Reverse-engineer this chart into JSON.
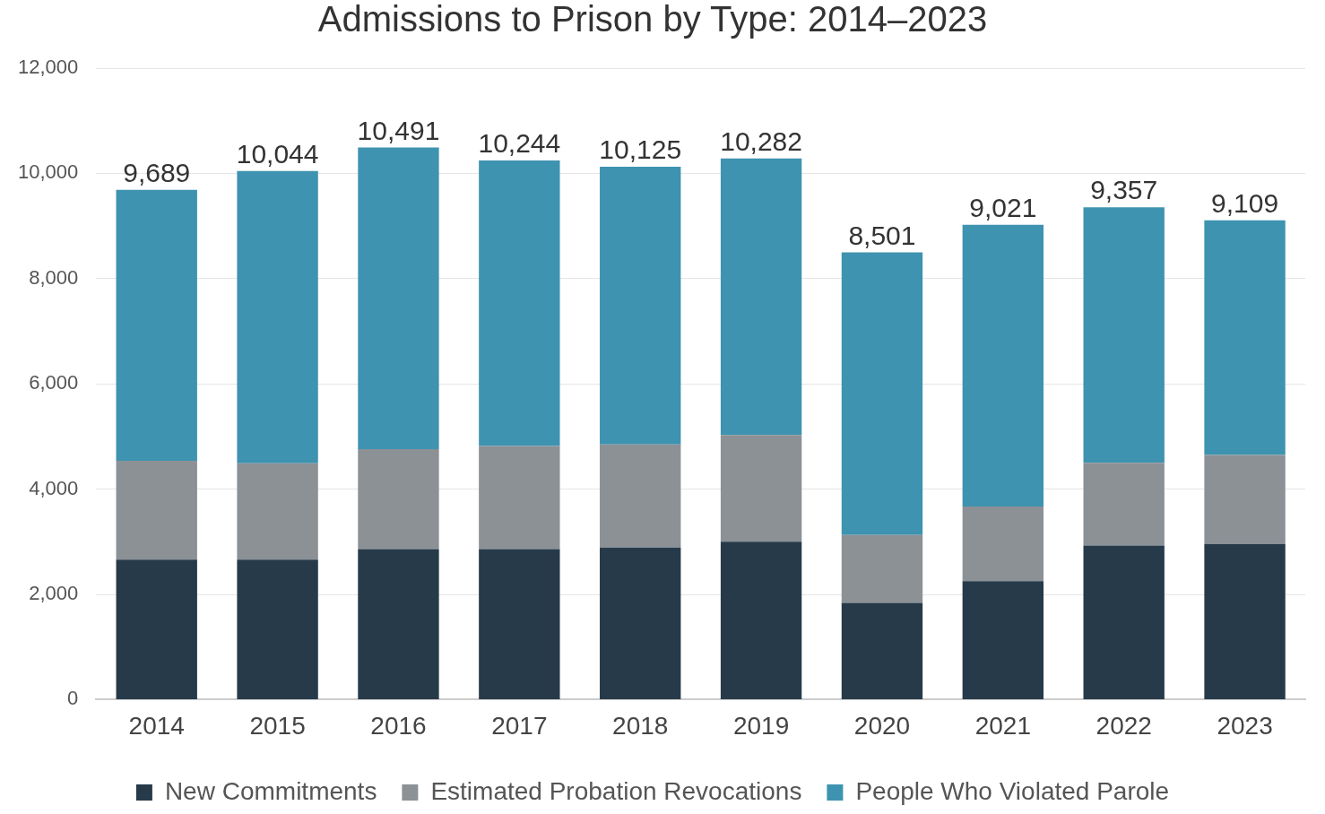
{
  "chart_data": {
    "type": "bar",
    "title": "Admissions to Prison by Type: 2014–2023",
    "categories": [
      "2014",
      "2015",
      "2016",
      "2017",
      "2018",
      "2019",
      "2020",
      "2021",
      "2022",
      "2023"
    ],
    "stacked": true,
    "series": [
      {
        "name": "New Commitments",
        "color": "#263a4a",
        "values": [
          2660,
          2660,
          2860,
          2860,
          2890,
          3000,
          1840,
          2250,
          2930,
          2960
        ]
      },
      {
        "name": "Estimated Probation Revocations",
        "color": "#8c9196",
        "values": [
          1880,
          1830,
          1900,
          1960,
          1960,
          2030,
          1290,
          1420,
          1570,
          1690
        ]
      },
      {
        "name": "People Who Violated Parole",
        "color": "#3e93b0",
        "values": [
          5149,
          5554,
          5731,
          5424,
          5275,
          5252,
          5371,
          5351,
          4857,
          4459
        ]
      }
    ],
    "totals": [
      "9,689",
      "10,044",
      "10,491",
      "10,244",
      "10,125",
      "10,282",
      "8,501",
      "9,021",
      "9,357",
      "9,109"
    ],
    "ylim": [
      0,
      12000
    ],
    "yticks": [
      {
        "value": 0,
        "label": "0"
      },
      {
        "value": 2000,
        "label": "2,000"
      },
      {
        "value": 4000,
        "label": "4,000"
      },
      {
        "value": 6000,
        "label": "6,000"
      },
      {
        "value": 8000,
        "label": "8,000"
      },
      {
        "value": 10000,
        "label": "10,000"
      },
      {
        "value": 12000,
        "label": "12,000"
      }
    ],
    "grid": "y",
    "legend": "bottom"
  }
}
